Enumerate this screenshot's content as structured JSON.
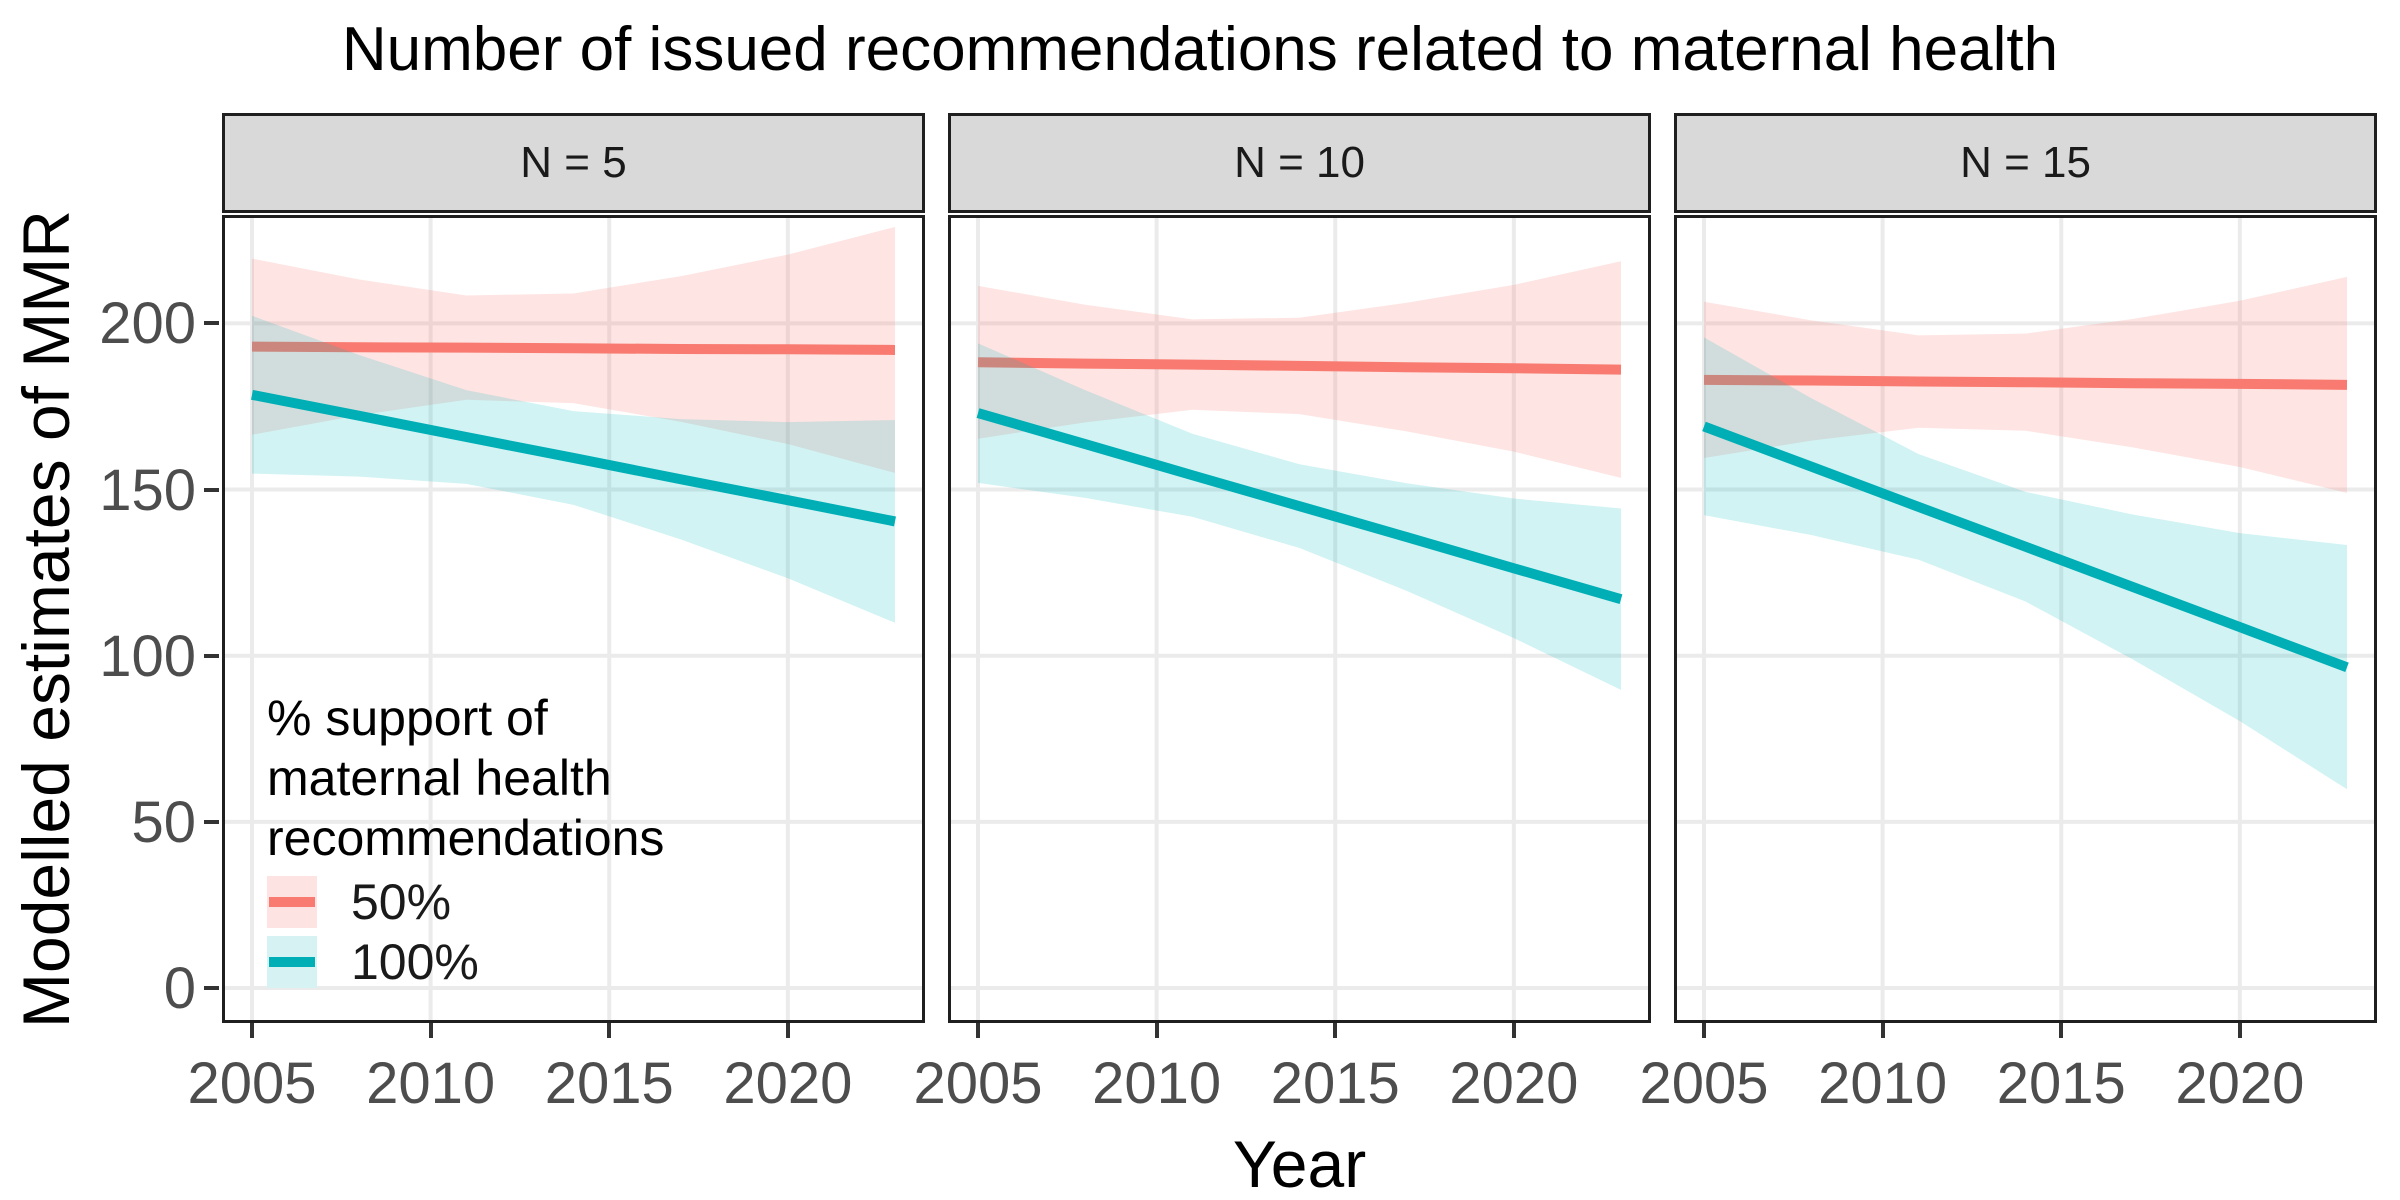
{
  "title": "Number of issued recommendations related to maternal health",
  "x_axis": {
    "label": "Year",
    "ticks": [
      "2005",
      "2010",
      "2015",
      "2020"
    ],
    "tick_years": [
      2005,
      2010,
      2015,
      2020
    ]
  },
  "y_axis": {
    "label": "Modelled estimates of MMR",
    "ticks": [
      "0",
      "50",
      "100",
      "150",
      "200"
    ],
    "tick_values": [
      0,
      50,
      100,
      150,
      200
    ]
  },
  "legend": {
    "title_lines": [
      "% support of",
      "maternal health",
      "recommendations"
    ],
    "entries": [
      {
        "label": "50%",
        "key_bg": "#FDE3E1",
        "line_color": "#F87A70"
      },
      {
        "label": "100%",
        "key_bg": "#D6F2F3",
        "line_color": "#00AEB5"
      }
    ]
  },
  "colors": {
    "gridline": "#EBEBEB",
    "strip_bg": "#D9D9D9",
    "strip_text": "#1A1A1A",
    "axis_text": "#4D4D4D",
    "tick_mark": "#333333",
    "panel_border": "#1f1f1f",
    "title_text": "#000000"
  },
  "chart_data": {
    "type": "line",
    "title": "Number of issued recommendations related to maternal health",
    "xlabel": "Year",
    "ylabel": "Modelled estimates of MMR",
    "x_range": [
      2005,
      2023
    ],
    "ylim": [
      -10,
      233
    ],
    "grid": "major-only",
    "legend_position": "inside-bottom-left-first-panel",
    "facets": [
      {
        "label": "N = 5",
        "series": [
          {
            "name": "50%",
            "line_color": "#F87A70",
            "fill_color": "#F8766D",
            "fill_opacity": 0.2,
            "x": [
              2005,
              2008,
              2011,
              2014,
              2017,
              2020,
              2023
            ],
            "y": [
              193,
              192.8,
              192.7,
              192.5,
              192.3,
              192.2,
              192
            ],
            "ci_upper": [
              219.5,
              213.2,
              208.4,
              209,
              214.2,
              220.7,
              229
            ],
            "ci_lower": [
              166.5,
              172.4,
              177,
              176,
              170.4,
              163.7,
              155
            ]
          },
          {
            "name": "100%",
            "line_color": "#00AEB5",
            "fill_color": "#00BFC4",
            "fill_opacity": 0.18,
            "x": [
              2005,
              2008,
              2011,
              2014,
              2017,
              2020,
              2023
            ],
            "y": [
              178.5,
              172.2,
              165.8,
              159.5,
              153.1,
              146.8,
              140.4
            ],
            "ci_upper": [
              202.3,
              190.5,
              179.9,
              173.6,
              171.2,
              170.3,
              170.9
            ],
            "ci_lower": [
              154.8,
              153.9,
              151.7,
              145.4,
              135,
              123.3,
              109.9
            ]
          }
        ]
      },
      {
        "label": "N = 10",
        "series": [
          {
            "name": "50%",
            "line_color": "#F87A70",
            "fill_color": "#F8766D",
            "fill_opacity": 0.2,
            "x": [
              2005,
              2008,
              2011,
              2014,
              2017,
              2020,
              2023
            ],
            "y": [
              188.3,
              187.9,
              187.6,
              187.2,
              186.8,
              186.5,
              186.1
            ],
            "ci_upper": [
              211.3,
              205.6,
              201.2,
              201.7,
              206.2,
              211.6,
              218.7
            ],
            "ci_lower": [
              165.3,
              170.2,
              174,
              172.7,
              167.5,
              161.4,
              153.5
            ]
          },
          {
            "name": "100%",
            "line_color": "#00AEB5",
            "fill_color": "#00BFC4",
            "fill_opacity": 0.18,
            "x": [
              2005,
              2008,
              2011,
              2014,
              2017,
              2020,
              2023
            ],
            "y": [
              173,
              163.7,
              154.3,
              145,
              135.7,
              126.3,
              117
            ],
            "ci_upper": [
              194,
              179.9,
              166.8,
              157.6,
              151.9,
              147.3,
              144.3
            ],
            "ci_lower": [
              152,
              147.5,
              141.8,
              132.4,
              119.5,
              105.3,
              89.7
            ]
          }
        ]
      },
      {
        "label": "N = 15",
        "series": [
          {
            "name": "50%",
            "line_color": "#F87A70",
            "fill_color": "#F8766D",
            "fill_opacity": 0.2,
            "x": [
              2005,
              2008,
              2011,
              2014,
              2017,
              2020,
              2023
            ],
            "y": [
              183,
              182.8,
              182.5,
              182.3,
              182,
              181.8,
              181.5
            ],
            "ci_upper": [
              206.5,
              200.9,
              196.4,
              196.9,
              201.3,
              206.8,
              214
            ],
            "ci_lower": [
              159.5,
              164.7,
              168.6,
              167.7,
              162.7,
              156.8,
              149
            ]
          },
          {
            "name": "100%",
            "line_color": "#00AEB5",
            "fill_color": "#00BFC4",
            "fill_opacity": 0.18,
            "x": [
              2005,
              2008,
              2011,
              2014,
              2017,
              2020,
              2023
            ],
            "y": [
              169,
              156.9,
              144.8,
              132.8,
              120.7,
              108.6,
              96.5
            ],
            "ci_upper": [
              195.8,
              177.5,
              160.7,
              149.3,
              142.5,
              136.9,
              133.3
            ],
            "ci_lower": [
              142.3,
              136.3,
              128.9,
              116.3,
              98.9,
              80.3,
              59.8
            ]
          }
        ]
      }
    ]
  }
}
